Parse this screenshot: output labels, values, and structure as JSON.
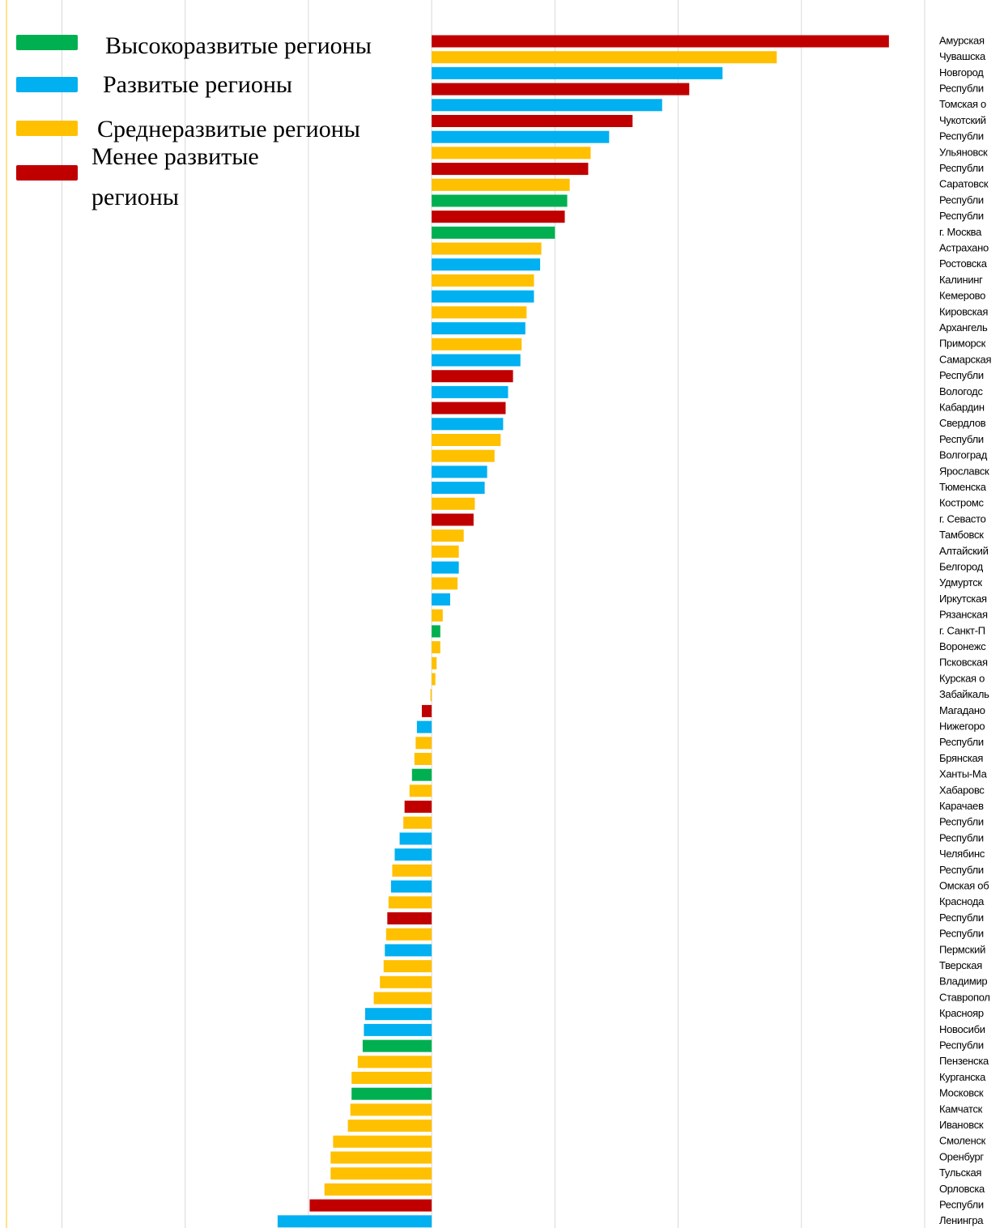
{
  "chart_data": {
    "type": "barh",
    "categories": [
      "Амурская",
      "Чувашска",
      "Новгород",
      "Республи",
      "Томская о",
      "Чукотский",
      "Республи",
      "Ульяновск",
      "Республи",
      "Саратовск",
      "Республи",
      "Республи",
      "г. Москва",
      "Астрахано",
      "Ростовска",
      "Калининг",
      "Кемерово",
      "Кировская",
      "Архангель",
      "Приморск",
      "Самарская",
      "Республи",
      "Вологодс",
      "Кабардин",
      "Свердлов",
      "Республи",
      "Волгоград",
      "Ярославск",
      "Тюменска",
      "Костромс",
      "г. Севасто",
      "Тамбовск",
      "Алтайский",
      "Белгород",
      "Удмуртск",
      "Иркутская",
      "Рязанская",
      "г. Санкт-П",
      "Воронежс",
      "Псковская",
      "Курская о",
      "Забайкаль",
      "Магадано",
      "Нижегоро",
      "Республи",
      "Брянская",
      "Ханты-Ма",
      "Хабаровс",
      "Карачаев",
      "Республи",
      "Республи",
      "Челябинс",
      "Республи",
      "Омская об",
      "Краснода",
      "Республи",
      "Республи",
      "Пермский",
      "Тверская",
      "Владимир",
      "Ставропол",
      "Краснояр",
      "Новосиби",
      "Республи",
      "Пензенска",
      "Курганска",
      "Московск",
      "Камчатск",
      "Ивановск",
      "Смоленск",
      "Оренбург",
      "Тульская",
      "Орловска",
      "Республи",
      "Ленингра"
    ],
    "series": [
      {
        "name": "Высокоразвитые регионы",
        "color": "#00b050",
        "values": [
          null,
          null,
          null,
          null,
          null,
          null,
          null,
          null,
          null,
          null,
          1.1,
          null,
          1.0,
          null,
          null,
          null,
          null,
          null,
          null,
          null,
          null,
          null,
          null,
          null,
          null,
          null,
          null,
          null,
          null,
          null,
          null,
          null,
          null,
          null,
          null,
          null,
          null,
          0.07,
          null,
          null,
          null,
          null,
          null,
          null,
          null,
          null,
          -0.16,
          null,
          null,
          null,
          null,
          null,
          null,
          null,
          null,
          null,
          null,
          null,
          null,
          null,
          null,
          null,
          null,
          -0.56,
          null,
          null,
          -0.65,
          null,
          null,
          null,
          null,
          null,
          null,
          null,
          null
        ]
      },
      {
        "name": "Развитые регионы",
        "color": "#00b0f0",
        "values": [
          null,
          null,
          2.36,
          null,
          1.87,
          null,
          1.44,
          null,
          null,
          null,
          null,
          null,
          null,
          null,
          0.88,
          null,
          0.83,
          null,
          0.76,
          null,
          0.72,
          null,
          0.62,
          null,
          0.58,
          null,
          null,
          0.45,
          0.43,
          null,
          null,
          null,
          null,
          0.22,
          null,
          0.15,
          null,
          null,
          null,
          null,
          null,
          null,
          null,
          -0.12,
          null,
          null,
          null,
          null,
          null,
          null,
          -0.26,
          -0.3,
          null,
          -0.33,
          null,
          null,
          null,
          -0.38,
          null,
          null,
          null,
          -0.54,
          -0.55,
          null,
          null,
          null,
          null,
          null,
          null,
          null,
          null,
          null,
          null,
          null,
          -1.25
        ]
      },
      {
        "name": "Среднеразвитые регионы",
        "color": "#ffc000",
        "values": [
          null,
          2.8,
          null,
          null,
          null,
          null,
          null,
          1.29,
          null,
          1.12,
          null,
          null,
          null,
          0.89,
          null,
          0.83,
          null,
          0.77,
          null,
          0.73,
          null,
          null,
          null,
          null,
          null,
          0.56,
          0.51,
          null,
          null,
          0.35,
          null,
          0.26,
          0.22,
          null,
          0.21,
          null,
          0.09,
          null,
          0.07,
          0.04,
          0.03,
          -0.01,
          null,
          null,
          -0.13,
          -0.14,
          null,
          -0.18,
          null,
          -0.23,
          null,
          null,
          -0.32,
          null,
          -0.35,
          null,
          -0.37,
          null,
          -0.39,
          -0.42,
          -0.47,
          null,
          null,
          null,
          -0.6,
          -0.65,
          null,
          -0.66,
          -0.68,
          -0.8,
          -0.82,
          -0.82,
          -0.87,
          null,
          null
        ]
      },
      {
        "name": "Менее развитые регионы",
        "color": "#c00000",
        "values": [
          3.71,
          null,
          null,
          2.09,
          null,
          1.63,
          null,
          null,
          1.27,
          null,
          null,
          1.08,
          null,
          null,
          null,
          null,
          null,
          null,
          null,
          null,
          null,
          0.66,
          null,
          0.6,
          null,
          null,
          null,
          null,
          null,
          null,
          0.34,
          null,
          null,
          null,
          null,
          null,
          null,
          null,
          null,
          null,
          null,
          null,
          -0.08,
          null,
          null,
          null,
          null,
          null,
          -0.22,
          null,
          null,
          null,
          null,
          null,
          null,
          -0.36,
          null,
          null,
          null,
          null,
          null,
          null,
          null,
          null,
          null,
          null,
          null,
          null,
          null,
          null,
          null,
          null,
          null,
          -0.99,
          null
        ]
      }
    ],
    "xlim": [
      -3.45,
      4.0
    ],
    "xticks": [
      -3,
      -2,
      -1,
      0,
      1,
      2,
      3,
      4
    ],
    "grid": true
  }
}
